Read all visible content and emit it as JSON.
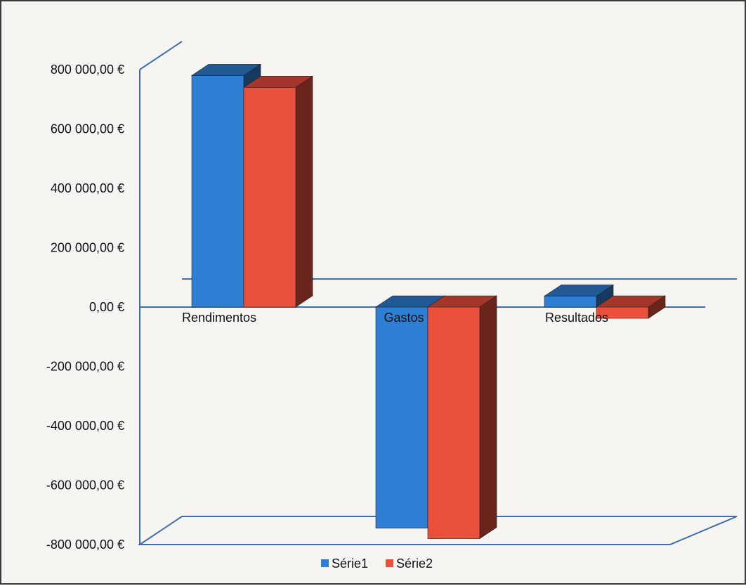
{
  "chart_data": {
    "type": "bar",
    "style": "3d-clustered-column",
    "categories": [
      "Rendimentos",
      "Gastos",
      "Resultados"
    ],
    "series": [
      {
        "name": "Série1",
        "values": [
          780000,
          -745000,
          37000
        ],
        "color": "#2f7fd4"
      },
      {
        "name": "Série2",
        "values": [
          740000,
          -780000,
          -38000
        ],
        "color": "#ea4f3c"
      }
    ],
    "title": "",
    "xlabel": "",
    "ylabel": "",
    "ylim": [
      -800000,
      800000
    ],
    "ytick_values": [
      800000,
      600000,
      400000,
      200000,
      0,
      -200000,
      -400000,
      -600000,
      -800000
    ],
    "ytick_labels": [
      "800 000,00 €",
      "600 000,00 €",
      "400 000,00 €",
      "200 000,00 €",
      "0,00 €",
      "-200 000,00 €",
      "-400 000,00 €",
      "-600 000,00 €",
      "-800 000,00 €"
    ],
    "legend": {
      "placement": "bottom",
      "entries": [
        "Série1",
        "Série2"
      ]
    },
    "grid": false
  }
}
